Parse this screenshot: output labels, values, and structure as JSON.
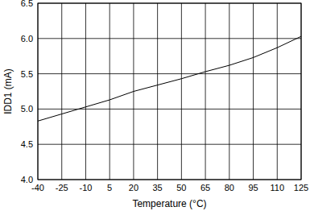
{
  "chart_data": {
    "type": "line",
    "x_label": "Temperature (°C)",
    "y_label": "IDD1 (mA)",
    "x": [
      -40,
      -25,
      -10,
      5,
      20,
      35,
      50,
      65,
      80,
      95,
      110,
      125
    ],
    "values": [
      4.83,
      4.93,
      5.03,
      5.13,
      5.25,
      5.34,
      5.43,
      5.53,
      5.62,
      5.73,
      5.87,
      6.03
    ],
    "color": "#000000",
    "xlim": [
      -40,
      125
    ],
    "xticks": [
      -40,
      -25,
      -10,
      5,
      20,
      35,
      50,
      65,
      80,
      95,
      110,
      125
    ],
    "ylim": [
      4,
      6.5
    ],
    "yticks": [
      {
        "value": 4,
        "label": "4.0"
      },
      4.5,
      {
        "value": 5,
        "label": "5.0"
      },
      5.5,
      {
        "value": 6,
        "label": "6.0"
      },
      6.5
    ],
    "grid": true
  }
}
